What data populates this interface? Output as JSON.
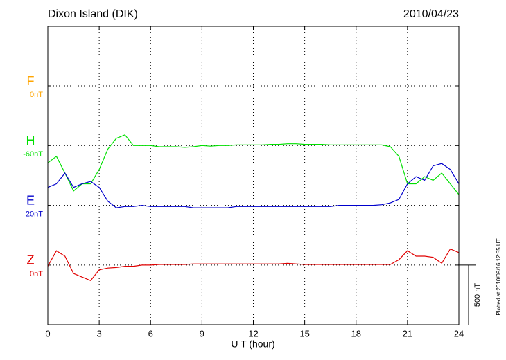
{
  "chart_data": {
    "type": "line",
    "title": "Dixon Island (DIK)",
    "date": "2010/04/23",
    "xlabel": "U T (hour)",
    "plotted_note": "Plotted at 2010/09/16 12:55 UT",
    "scale_bar": {
      "value": 500,
      "label": "500 nT"
    },
    "xlim": [
      0,
      24
    ],
    "xticks": [
      0,
      3,
      6,
      9,
      12,
      15,
      18,
      21,
      24
    ],
    "grid": true,
    "x": [
      0,
      0.5,
      1,
      1.5,
      2,
      2.5,
      3,
      3.5,
      4,
      4.5,
      5,
      5.5,
      6,
      6.5,
      7,
      7.5,
      8,
      8.5,
      9,
      9.5,
      10,
      10.5,
      11,
      11.5,
      12,
      12.5,
      13,
      13.5,
      14,
      14.5,
      15,
      15.5,
      16,
      16.5,
      17,
      17.5,
      18,
      18.5,
      19,
      19.5,
      20,
      20.5,
      21,
      21.5,
      22,
      22.5,
      23,
      23.5,
      24
    ],
    "series": [
      {
        "name": "F",
        "color": "#ffa500",
        "baseline": {
          "value": 0,
          "label": "0nT"
        }
      },
      {
        "name": "H",
        "color": "#00e000",
        "baseline": {
          "value": -60,
          "label": "-60nT"
        },
        "values": [
          -205,
          -150,
          -290,
          -440,
          -380,
          -380,
          -260,
          -90,
          0,
          30,
          -60,
          -60,
          -60,
          -70,
          -70,
          -70,
          -75,
          -70,
          -60,
          -65,
          -60,
          -60,
          -55,
          -55,
          -55,
          -55,
          -50,
          -50,
          -45,
          -45,
          -50,
          -50,
          -50,
          -55,
          -55,
          -55,
          -55,
          -55,
          -55,
          -55,
          -70,
          -150,
          -380,
          -380,
          -320,
          -350,
          -290,
          -380,
          -470
        ]
      },
      {
        "name": "E",
        "color": "#0000cc",
        "baseline": {
          "value": 20,
          "label": "20nT"
        },
        "values": [
          170,
          200,
          290,
          170,
          200,
          220,
          170,
          55,
          0,
          10,
          10,
          20,
          10,
          10,
          10,
          10,
          10,
          0,
          0,
          0,
          0,
          0,
          10,
          10,
          10,
          10,
          10,
          10,
          10,
          10,
          10,
          10,
          10,
          10,
          20,
          20,
          20,
          20,
          20,
          25,
          40,
          70,
          200,
          260,
          230,
          350,
          370,
          320,
          200
        ]
      },
      {
        "name": "Z",
        "color": "#e00000",
        "baseline": {
          "value": 0,
          "label": "0nT"
        },
        "values": [
          -10,
          120,
          75,
          -70,
          -100,
          -130,
          -40,
          -25,
          -20,
          -10,
          -10,
          0,
          0,
          5,
          5,
          5,
          5,
          10,
          10,
          10,
          10,
          10,
          10,
          10,
          10,
          10,
          10,
          10,
          15,
          10,
          5,
          5,
          5,
          5,
          5,
          5,
          5,
          5,
          5,
          5,
          5,
          45,
          120,
          75,
          75,
          65,
          15,
          135,
          105
        ]
      }
    ]
  }
}
